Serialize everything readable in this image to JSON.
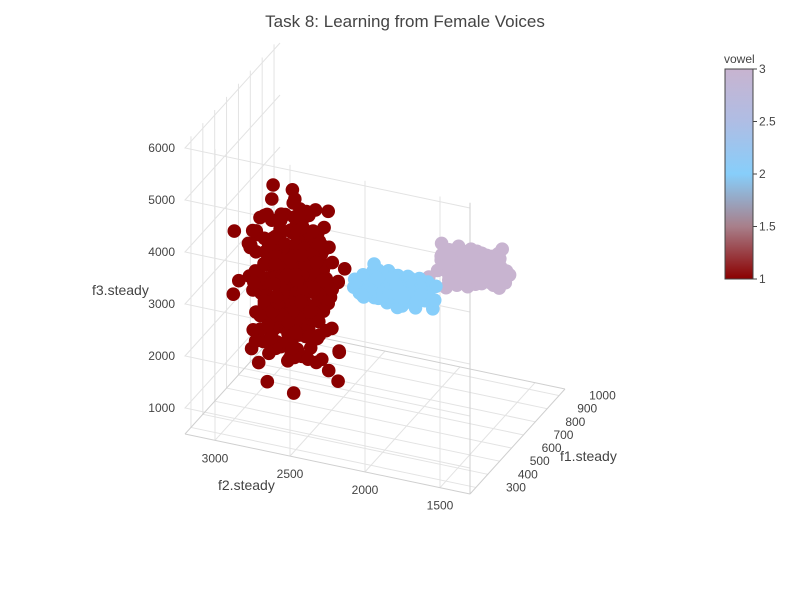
{
  "chart_data": {
    "type": "scatter",
    "subtype": "scatter3d",
    "title": "Task 8: Learning from Female Voices",
    "axes": {
      "x": {
        "label": "f1.steady",
        "ticks": [
          "300",
          "400",
          "500",
          "600",
          "700",
          "800",
          "900",
          "1000"
        ],
        "range": [
          250,
          1050
        ]
      },
      "y": {
        "label": "f2.steady",
        "ticks": [
          "1500",
          "2000",
          "2500",
          "3000"
        ],
        "range": [
          1300,
          3200
        ]
      },
      "z": {
        "label": "f3.steady",
        "ticks": [
          "1000",
          "2000",
          "3000",
          "4000",
          "5000",
          "6000"
        ],
        "range": [
          500,
          6100
        ]
      }
    },
    "grid": true,
    "colorbar": {
      "title": "vowel",
      "ticks": [
        "1",
        "1.5",
        "2",
        "2.5",
        "3"
      ],
      "range": [
        1,
        3
      ],
      "colors": [
        "#8b0000",
        "#87cefa",
        "#c8b4d0"
      ]
    },
    "series": [
      {
        "vowel": 1,
        "color": "#8b0000",
        "count": 340,
        "f1": [
          280,
          480
        ],
        "f2": [
          2100,
          3050
        ],
        "f3": [
          1000,
          5900
        ]
      },
      {
        "vowel": 2,
        "color": "#87cefa",
        "count": 200,
        "f1": [
          520,
          760
        ],
        "f2": [
          1700,
          2500
        ],
        "f3": [
          2600,
          3400
        ]
      },
      {
        "vowel": 3,
        "color": "#c8b4d0",
        "count": 220,
        "f1": [
          720,
          1000
        ],
        "f2": [
          1400,
          2100
        ],
        "f3": [
          2600,
          3500
        ]
      }
    ]
  }
}
